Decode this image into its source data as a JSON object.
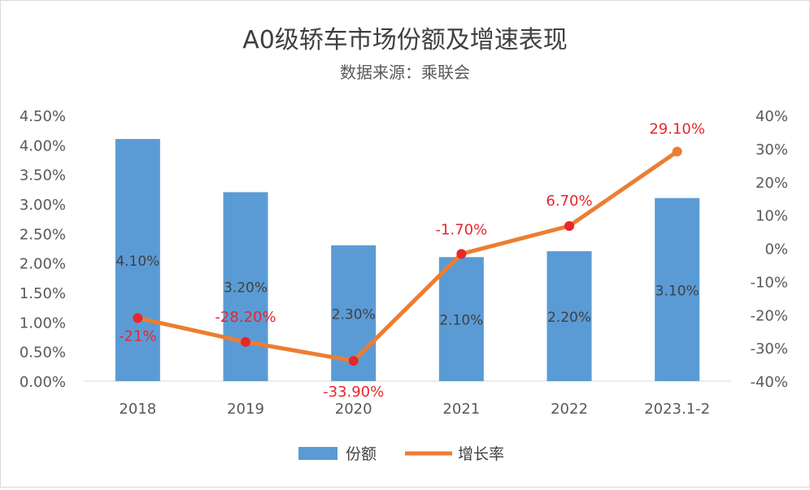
{
  "chart_data": {
    "type": "bar+line",
    "title": "A0级轿车市场份额及增速表现",
    "subtitle": "数据来源：乘联会",
    "categories": [
      "2018",
      "2019",
      "2020",
      "2021",
      "2022",
      "2023.1-2"
    ],
    "series": [
      {
        "name": "份额",
        "type": "bar",
        "axis": "left",
        "values": [
          4.1,
          3.2,
          2.3,
          2.1,
          2.2,
          3.1
        ],
        "labels": [
          "4.10%",
          "3.20%",
          "2.30%",
          "2.10%",
          "2.20%",
          "3.10%"
        ],
        "color": "#5b9bd5"
      },
      {
        "name": "增长率",
        "type": "line",
        "axis": "right",
        "values": [
          -21,
          -28.2,
          -33.9,
          -1.7,
          6.7,
          29.1
        ],
        "labels": [
          "-21%",
          "-28.20%",
          "-33.90%",
          "-1.70%",
          "6.70%",
          "29.10%"
        ],
        "color": "#ed7d31",
        "marker_color": "#e8262b",
        "label_color": "#e8262b"
      }
    ],
    "y_left": {
      "ylim": [
        0,
        4.5
      ],
      "ticks": [
        "0.00%",
        "0.50%",
        "1.00%",
        "1.50%",
        "2.00%",
        "2.50%",
        "3.00%",
        "3.50%",
        "4.00%",
        "4.50%"
      ]
    },
    "y_right": {
      "ylim": [
        -40,
        40
      ],
      "ticks": [
        "-40%",
        "-30%",
        "-20%",
        "-10%",
        "0%",
        "10%",
        "20%",
        "30%",
        "40%"
      ]
    },
    "grid": false,
    "legend_position": "bottom"
  }
}
